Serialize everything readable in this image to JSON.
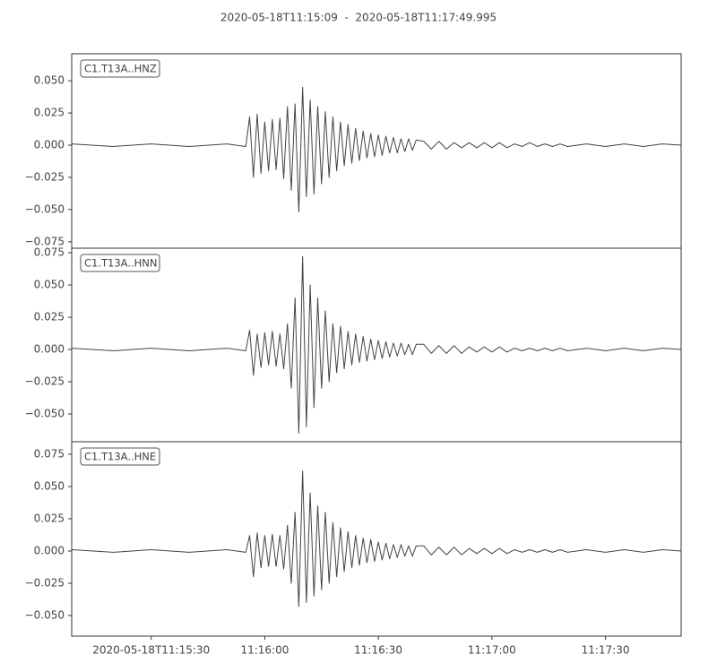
{
  "chart_data": {
    "type": "line",
    "title": "2020-05-18T11:15:09  -  2020-05-18T11:17:49.995",
    "x": [
      40509,
      40520,
      40530,
      40540,
      40550,
      40555,
      40556,
      40557,
      40558,
      40559,
      40560,
      40561,
      40562,
      40563,
      40564,
      40565,
      40566,
      40567,
      40568,
      40569,
      40570,
      40571,
      40572,
      40573,
      40574,
      40575,
      40576,
      40577,
      40578,
      40579,
      40580,
      40581,
      40582,
      40583,
      40584,
      40585,
      40586,
      40587,
      40588,
      40589,
      40590,
      40591,
      40592,
      40593,
      40594,
      40595,
      40596,
      40597,
      40598,
      40599,
      40600,
      40602,
      40604,
      40606,
      40608,
      40610,
      40612,
      40614,
      40616,
      40618,
      40620,
      40622,
      40624,
      40626,
      40628,
      40630,
      40632,
      40634,
      40636,
      40638,
      40640,
      40645,
      40650,
      40655,
      40660,
      40665,
      40669.995
    ],
    "xlim": [
      40509,
      40669.995
    ],
    "xticks": [
      {
        "value": 40530,
        "label": "2020-05-18T11:15:30"
      },
      {
        "value": 40560,
        "label": "11:16:00"
      },
      {
        "value": 40590,
        "label": "11:16:30"
      },
      {
        "value": 40620,
        "label": "11:17:00"
      },
      {
        "value": 40650,
        "label": "11:17:30"
      }
    ],
    "series": [
      {
        "name": "C1.T13A..HNZ",
        "color": "#444444",
        "ylim": [
          -0.08,
          0.071
        ],
        "yticks": [
          {
            "value": -0.075,
            "label": "−0.075"
          },
          {
            "value": -0.05,
            "label": "−0.050"
          },
          {
            "value": -0.025,
            "label": "−0.025"
          },
          {
            "value": 0,
            "label": "0.000"
          },
          {
            "value": 0.025,
            "label": "0.025"
          },
          {
            "value": 0.05,
            "label": "0.050"
          }
        ],
        "values": [
          0.001,
          -0.001,
          0.001,
          -0.001,
          0.001,
          -0.001,
          0.022,
          -0.025,
          0.024,
          -0.022,
          0.018,
          -0.02,
          0.02,
          -0.019,
          0.021,
          -0.026,
          0.03,
          -0.035,
          0.032,
          -0.052,
          0.045,
          -0.04,
          0.035,
          -0.038,
          0.03,
          -0.03,
          0.026,
          -0.025,
          0.022,
          -0.02,
          0.018,
          -0.016,
          0.016,
          -0.014,
          0.013,
          -0.012,
          0.011,
          -0.01,
          0.009,
          -0.009,
          0.008,
          -0.008,
          0.007,
          -0.006,
          0.006,
          -0.006,
          0.005,
          -0.005,
          0.005,
          -0.004,
          0.004,
          0.003,
          -0.003,
          0.003,
          -0.003,
          0.002,
          -0.002,
          0.002,
          -0.002,
          0.002,
          -0.002,
          0.002,
          -0.002,
          0.001,
          -0.001,
          0.002,
          -0.001,
          0.001,
          -0.001,
          0.001,
          -0.001,
          0.001,
          -0.001,
          0.001,
          -0.001,
          0.001,
          0
        ]
      },
      {
        "name": "C1.T13A..HNN",
        "color": "#444444",
        "ylim": [
          -0.0715,
          0.0785
        ],
        "yticks": [
          {
            "value": -0.05,
            "label": "−0.050"
          },
          {
            "value": -0.025,
            "label": "−0.025"
          },
          {
            "value": 0,
            "label": "0.000"
          },
          {
            "value": 0.025,
            "label": "0.025"
          },
          {
            "value": 0.05,
            "label": "0.050"
          },
          {
            "value": 0.075,
            "label": "0.075"
          }
        ],
        "values": [
          0.001,
          -0.001,
          0.001,
          -0.001,
          0.001,
          -0.001,
          0.015,
          -0.02,
          0.012,
          -0.014,
          0.013,
          -0.012,
          0.014,
          -0.013,
          0.012,
          -0.015,
          0.02,
          -0.03,
          0.04,
          -0.065,
          0.072,
          -0.06,
          0.05,
          -0.045,
          0.04,
          -0.03,
          0.03,
          -0.025,
          0.02,
          -0.018,
          0.018,
          -0.015,
          0.014,
          -0.012,
          0.012,
          -0.01,
          0.01,
          -0.009,
          0.008,
          -0.008,
          0.007,
          -0.007,
          0.006,
          -0.006,
          0.005,
          -0.005,
          0.005,
          -0.004,
          0.004,
          -0.004,
          0.004,
          0.004,
          -0.003,
          0.003,
          -0.003,
          0.003,
          -0.003,
          0.002,
          -0.002,
          0.002,
          -0.002,
          0.002,
          -0.002,
          0.001,
          -0.001,
          0.001,
          -0.001,
          0.001,
          -0.001,
          0.001,
          -0.001,
          0.001,
          -0.001,
          0.001,
          -0.001,
          0.001,
          0
        ]
      },
      {
        "name": "C1.T13A..HNE",
        "color": "#444444",
        "ylim": [
          -0.066,
          0.0847
        ],
        "yticks": [
          {
            "value": -0.05,
            "label": "−0.050"
          },
          {
            "value": -0.025,
            "label": "−0.025"
          },
          {
            "value": 0,
            "label": "0.000"
          },
          {
            "value": 0.025,
            "label": "0.025"
          },
          {
            "value": 0.05,
            "label": "0.050"
          },
          {
            "value": 0.075,
            "label": "0.075"
          }
        ],
        "values": [
          0.001,
          -0.001,
          0.001,
          -0.001,
          0.001,
          -0.001,
          0.012,
          -0.02,
          0.014,
          -0.013,
          0.012,
          -0.012,
          0.013,
          -0.012,
          0.012,
          -0.014,
          0.02,
          -0.025,
          0.03,
          -0.043,
          0.062,
          -0.04,
          0.045,
          -0.035,
          0.035,
          -0.03,
          0.03,
          -0.025,
          0.022,
          -0.02,
          0.018,
          -0.016,
          0.015,
          -0.013,
          0.012,
          -0.011,
          0.01,
          -0.009,
          0.009,
          -0.008,
          0.007,
          -0.007,
          0.006,
          -0.006,
          0.005,
          -0.005,
          0.005,
          -0.004,
          0.004,
          -0.004,
          0.004,
          0.004,
          -0.003,
          0.003,
          -0.003,
          0.003,
          -0.003,
          0.002,
          -0.002,
          0.002,
          -0.002,
          0.002,
          -0.002,
          0.001,
          -0.001,
          0.001,
          -0.001,
          0.001,
          -0.001,
          0.001,
          -0.001,
          0.001,
          -0.001,
          0.001,
          -0.001,
          0.001,
          0
        ]
      }
    ]
  }
}
